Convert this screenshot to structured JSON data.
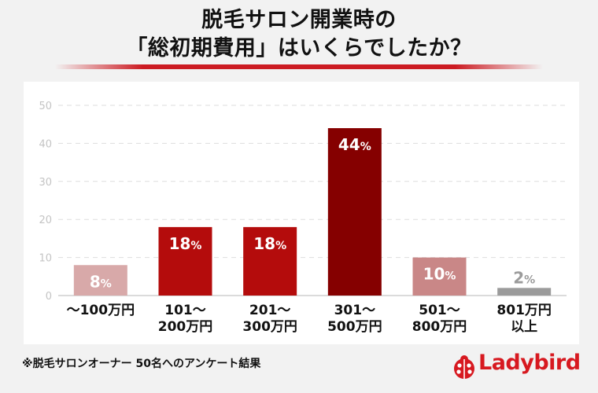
{
  "chart_data": {
    "type": "bar",
    "title": "脱毛サロン開業時の\n「総初期費用」はいくらでしたか？",
    "categories": [
      "〜100万円",
      "101〜\n200万円",
      "201〜\n300万円",
      "301〜\n500万円",
      "501〜\n800万円",
      "801万円\n以上"
    ],
    "values": [
      8,
      18,
      18,
      44,
      10,
      2
    ],
    "data_labels": [
      "8%",
      "18%",
      "18%",
      "44%",
      "10%",
      "2%"
    ],
    "bar_colors": [
      "#d8a9a9",
      "#b40c0c",
      "#b40c0c",
      "#850000",
      "#c98787",
      "#9b9b9b"
    ],
    "label_colors": [
      "#ffffff",
      "#ffffff",
      "#ffffff",
      "#ffffff",
      "#ffffff",
      "#ffffff"
    ],
    "yticks": [
      0,
      10,
      20,
      30,
      40,
      50
    ],
    "ylim": [
      0,
      50
    ],
    "grid": true,
    "xlabel": "",
    "ylabel": ""
  },
  "footnote": "※脱毛サロンオーナー 50名へのアンケート結果",
  "logo": {
    "text": "Ladybird",
    "icon": "ladybug-icon",
    "color": "#d71920"
  }
}
